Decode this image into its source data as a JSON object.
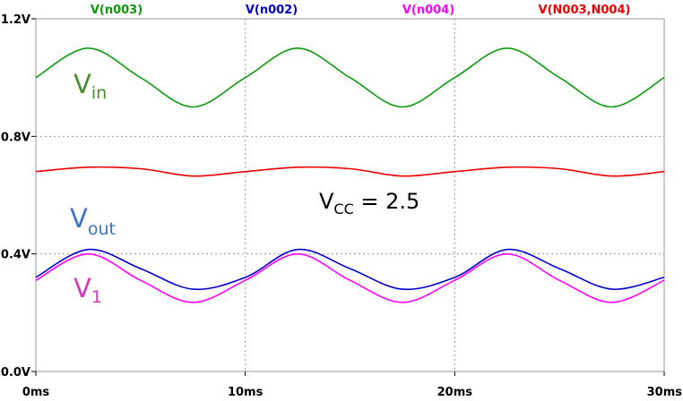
{
  "chart_data": {
    "type": "line",
    "xlim": [
      0,
      30
    ],
    "ylim": [
      0,
      1.2
    ],
    "x_ticks": [
      {
        "v": 0,
        "label": "0ms"
      },
      {
        "v": 10,
        "label": "10ms"
      },
      {
        "v": 20,
        "label": "20ms"
      },
      {
        "v": 30,
        "label": "30ms"
      }
    ],
    "y_ticks": [
      {
        "v": 0,
        "label": "0.0V"
      },
      {
        "v": 0.4,
        "label": "0.4V"
      },
      {
        "v": 0.8,
        "label": "0.8V"
      },
      {
        "v": 1.2,
        "label": "1.2V"
      }
    ],
    "grid": true,
    "legend_position": "top",
    "series": [
      {
        "name": "V(n003)",
        "color": "#0a9a0a",
        "x": [
          0,
          2.5,
          5,
          7.5,
          10,
          12.5,
          15,
          17.5,
          20,
          22.5,
          25,
          27.5,
          30
        ],
        "y": [
          1.0,
          1.1,
          1.0,
          0.9,
          1.0,
          1.1,
          1.0,
          0.9,
          1.0,
          1.1,
          1.0,
          0.9,
          1.0
        ]
      },
      {
        "name": "V(n002)",
        "color": "#0000cc",
        "x": [
          0,
          2.5,
          5,
          7.5,
          10,
          12.5,
          15,
          17.5,
          20,
          22.5,
          25,
          27.5,
          30
        ],
        "y": [
          0.32,
          0.415,
          0.35,
          0.28,
          0.32,
          0.415,
          0.35,
          0.28,
          0.32,
          0.415,
          0.35,
          0.28,
          0.32
        ]
      },
      {
        "name": "V(n004)",
        "color": "#ff00ff",
        "x": [
          0,
          2.5,
          5,
          7.5,
          10,
          12.5,
          15,
          17.5,
          20,
          22.5,
          25,
          27.5,
          30
        ],
        "y": [
          0.31,
          0.4,
          0.31,
          0.235,
          0.31,
          0.4,
          0.31,
          0.235,
          0.31,
          0.4,
          0.31,
          0.235,
          0.31
        ]
      },
      {
        "name": "V(N003,N004)",
        "color": "#ee0000",
        "x": [
          0,
          2.5,
          5,
          7.5,
          10,
          12.5,
          15,
          17.5,
          20,
          22.5,
          25,
          27.5,
          30
        ],
        "y": [
          0.68,
          0.695,
          0.69,
          0.665,
          0.68,
          0.695,
          0.69,
          0.665,
          0.68,
          0.695,
          0.69,
          0.665,
          0.68
        ]
      }
    ],
    "annotations": [
      {
        "main": "V",
        "sub": "in",
        "color": "#4a8c2a"
      },
      {
        "main": "V",
        "sub": "out",
        "color": "#3b74c4"
      },
      {
        "main": "V",
        "sub": "1",
        "color": "#d43ab8"
      },
      {
        "main": "V",
        "sub": "CC",
        "suffix": " = 2.5",
        "color": "#000000"
      }
    ]
  }
}
